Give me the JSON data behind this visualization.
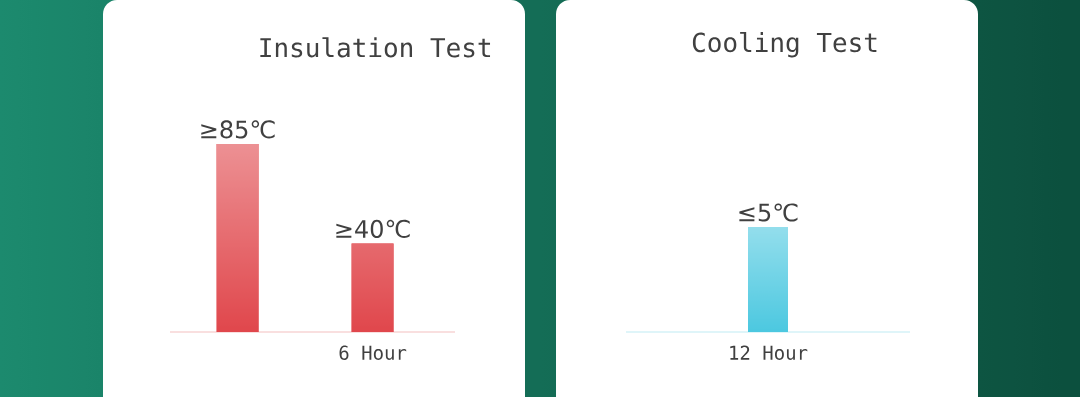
{
  "chart_data": [
    {
      "type": "bar",
      "title": "Insulation Test",
      "categories": [
        null,
        "6 Hour"
      ],
      "values": [
        85,
        40
      ],
      "value_labels": [
        "≥85℃",
        "≥40℃"
      ],
      "color": "#e0474c"
    },
    {
      "type": "bar",
      "title": "Cooling Test",
      "categories": [
        "12 Hour"
      ],
      "values": [
        5
      ],
      "value_labels": [
        "≤5℃"
      ],
      "color": "#4cc8e0"
    }
  ]
}
